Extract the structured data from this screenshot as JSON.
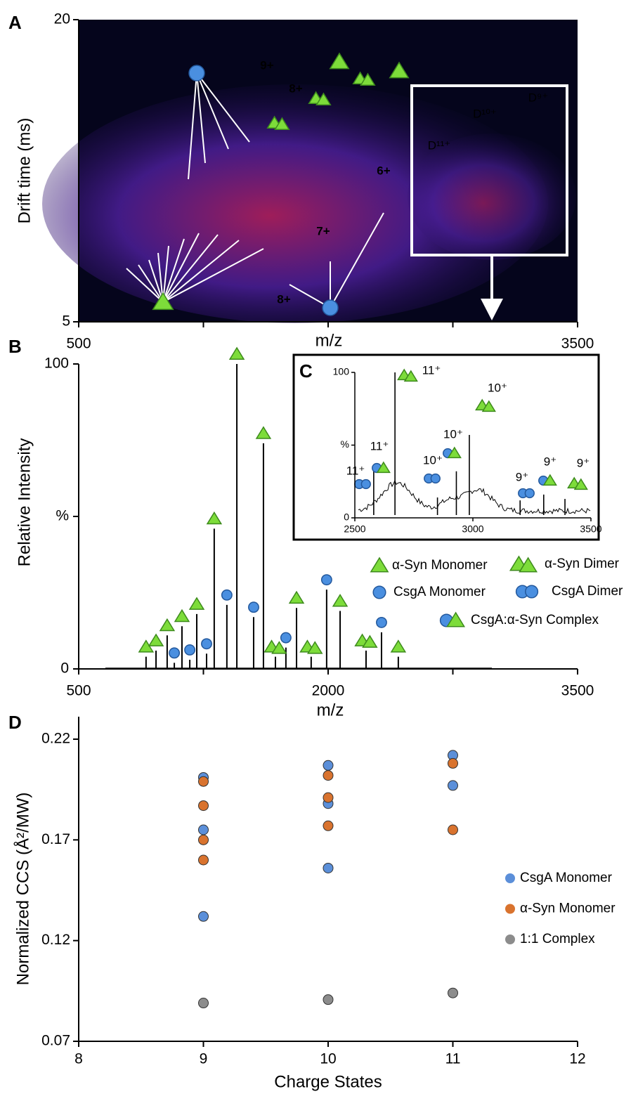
{
  "chart_data": [
    {
      "type": "heatmap",
      "panel": "A",
      "xlabel": "m/z",
      "ylabel": "Drift time (ms)",
      "xlim": [
        500,
        3500
      ],
      "ylim": [
        5,
        20
      ],
      "xticks": [
        500,
        3500
      ],
      "yticks": [
        5,
        20
      ],
      "xminorticks": [
        1250,
        2000,
        2750
      ],
      "annotations": [
        "9+",
        "8+",
        "7+",
        "6+",
        "8+",
        "D¹¹⁺",
        "D¹⁰⁺",
        "D⁹⁺"
      ]
    },
    {
      "type": "stem",
      "panel": "B",
      "xlabel": "m/z",
      "ylabel": "Relative Intensity",
      "line_color": "#000000",
      "xlim": [
        500,
        3500
      ],
      "ylim": [
        0,
        100
      ],
      "xticks": [
        500,
        2000,
        3500
      ],
      "xminorticks": [
        1250,
        2750
      ],
      "yticks": [
        0,
        {
          "value": 50,
          "label": "%"
        },
        100
      ],
      "series": [
        {
          "name": "α-Syn Monomer",
          "marker": "triangle",
          "x": [
            905,
            965,
            1032,
            1121,
            1210,
            1315,
            1451,
            1611,
            1810,
            2072,
            2422
          ],
          "values": [
            4,
            6,
            11,
            14,
            18,
            46,
            100,
            74,
            20,
            19,
            4
          ]
        },
        {
          "name": "CsgA Monomer",
          "marker": "circle",
          "x": [
            1075,
            1168,
            1269,
            1391,
            1552,
            1746,
            1991,
            2321
          ],
          "values": [
            2,
            3,
            5,
            21,
            17,
            7,
            26,
            12
          ]
        },
        {
          "name": "α-Syn Dimer",
          "marker": "triangle-pair",
          "x": [
            1683,
            1898,
            2228
          ],
          "values": [
            4,
            4,
            6
          ]
        },
        {
          "name": "CsgA Dimer",
          "marker": "circle-pair",
          "x": [],
          "values": []
        },
        {
          "name": "CsgA:α-Syn Complex",
          "marker": "circle-triangle",
          "x": [],
          "values": []
        }
      ]
    },
    {
      "type": "stem",
      "panel": "C",
      "line_color": "#000000",
      "xlim": [
        2500,
        3500
      ],
      "ylim": [
        0,
        100
      ],
      "xticks": [
        2500,
        3000,
        3500
      ],
      "yticks": [
        0,
        {
          "value": 50,
          "label": "%"
        },
        100
      ],
      "x": [
        2580,
        2670,
        2850,
        2930,
        2985,
        3200,
        3300,
        3390
      ],
      "values": [
        33,
        100,
        14,
        32,
        57,
        12,
        16,
        13
      ],
      "annotations": [
        "11⁺",
        "11⁺",
        "11⁺",
        "10⁺",
        "10⁺",
        "10⁺",
        "9⁺",
        "9⁺",
        "9⁺"
      ]
    },
    {
      "type": "scatter",
      "panel": "D",
      "xlabel": "Charge States",
      "ylabel": "Normalized CCS (Å²/MW)",
      "xlim": [
        8,
        12
      ],
      "ylim": [
        0.07,
        0.22
      ],
      "xticks": [
        8,
        9,
        10,
        11,
        12
      ],
      "yticks": [
        0.07,
        0.12,
        0.17,
        0.22
      ],
      "series": [
        {
          "name": "CsgA Monomer",
          "color": "#5b8fd9",
          "x": [
            9,
            9,
            9,
            10,
            10,
            10,
            11,
            11
          ],
          "values": [
            0.201,
            0.175,
            0.132,
            0.207,
            0.188,
            0.156,
            0.212,
            0.197
          ]
        },
        {
          "name": "α-Syn Monomer",
          "color": "#d9732e",
          "x": [
            9,
            9,
            9,
            9,
            10,
            10,
            10,
            11,
            11
          ],
          "values": [
            0.199,
            0.187,
            0.17,
            0.16,
            0.202,
            0.191,
            0.177,
            0.208,
            0.175
          ]
        },
        {
          "name": "1:1 Complex",
          "color": "#8c8c8c",
          "x": [
            9,
            10,
            11
          ],
          "values": [
            0.089,
            0.0907,
            0.094
          ]
        }
      ]
    }
  ]
}
